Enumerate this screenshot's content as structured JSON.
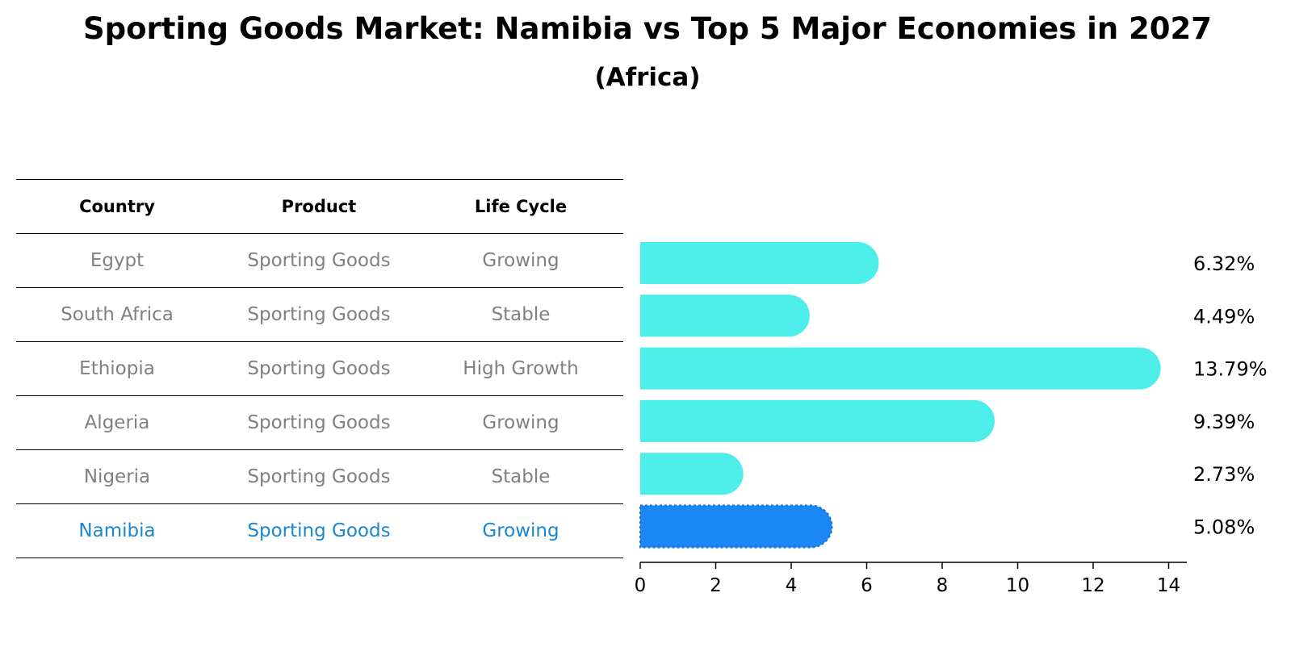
{
  "title": "Sporting Goods Market: Namibia vs Top 5 Major Economies in 2027",
  "subtitle": "(Africa)",
  "table": {
    "headers": [
      "Country",
      "Product",
      "Life Cycle"
    ],
    "rows": [
      {
        "country": "Egypt",
        "product": "Sporting Goods",
        "life_cycle": "Growing"
      },
      {
        "country": "South Africa",
        "product": "Sporting Goods",
        "life_cycle": "Stable"
      },
      {
        "country": "Ethiopia",
        "product": "Sporting Goods",
        "life_cycle": "High Growth"
      },
      {
        "country": "Algeria",
        "product": "Sporting Goods",
        "life_cycle": "Growing"
      },
      {
        "country": "Nigeria",
        "product": "Sporting Goods",
        "life_cycle": "Stable"
      },
      {
        "country": "Namibia",
        "product": "Sporting Goods",
        "life_cycle": "Growing"
      }
    ]
  },
  "colors": {
    "bar": "#4deeea",
    "highlight_bar": "#1a87f5",
    "highlight_text": "#1a87d4",
    "muted_text": "#808080"
  },
  "chart_data": {
    "type": "bar",
    "orientation": "horizontal",
    "categories": [
      "Egypt",
      "South Africa",
      "Ethiopia",
      "Algeria",
      "Nigeria",
      "Namibia"
    ],
    "values": [
      6.32,
      4.49,
      13.79,
      9.39,
      2.73,
      5.08
    ],
    "value_labels": [
      "6.32%",
      "4.49%",
      "13.79%",
      "9.39%",
      "2.73%",
      "5.08%"
    ],
    "highlight": "Namibia",
    "xlim": [
      0,
      14.5
    ],
    "xticks": [
      0,
      2,
      4,
      6,
      8,
      10,
      12,
      14
    ]
  }
}
